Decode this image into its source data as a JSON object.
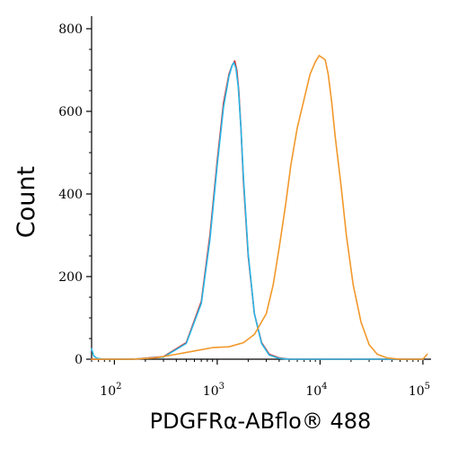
{
  "chart_data": {
    "type": "line",
    "xlabel": "PDGFRα-ABflo® 488",
    "ylabel": "Count",
    "x_scale": "log",
    "xlim": [
      60,
      120000
    ],
    "ylim": [
      0,
      800
    ],
    "x_ticks": [
      {
        "base": "10",
        "exp": "2",
        "value": 100
      },
      {
        "base": "10",
        "exp": "3",
        "value": 1000
      },
      {
        "base": "10",
        "exp": "4",
        "value": 10000
      },
      {
        "base": "10",
        "exp": "5",
        "value": 100000
      }
    ],
    "y_ticks": [
      "0",
      "200",
      "400",
      "600",
      "800"
    ],
    "grid": false,
    "legend": "none",
    "series": [
      {
        "color": "#d62a2a",
        "x": [
          60,
          150,
          300,
          500,
          700,
          850,
          1000,
          1150,
          1300,
          1400,
          1480,
          1550,
          1620,
          1700,
          1800,
          2000,
          2300,
          2700,
          3200,
          4000,
          5000,
          7000,
          10000,
          100000
        ],
        "y": [
          0,
          0,
          6,
          40,
          140,
          300,
          480,
          620,
          690,
          712,
          722,
          700,
          650,
          560,
          430,
          250,
          110,
          40,
          12,
          3,
          0,
          0,
          0,
          0
        ]
      },
      {
        "color": "#29b6e6",
        "x": [
          60,
          63,
          68,
          80,
          150,
          300,
          500,
          700,
          850,
          1000,
          1150,
          1300,
          1400,
          1450,
          1520,
          1600,
          1700,
          1800,
          2000,
          2300,
          2700,
          3200,
          4000,
          5000,
          7000,
          10000,
          100000
        ],
        "y": [
          25,
          8,
          2,
          0,
          0,
          5,
          38,
          135,
          290,
          470,
          610,
          685,
          712,
          718,
          705,
          660,
          560,
          440,
          255,
          110,
          38,
          10,
          2,
          0,
          0,
          0,
          0
        ]
      },
      {
        "color": "#f2982a",
        "x": [
          60,
          150,
          250,
          400,
          600,
          900,
          1300,
          1800,
          2300,
          3000,
          3500,
          4000,
          4600,
          5200,
          6000,
          7000,
          8000,
          9000,
          9800,
          10500,
          11200,
          12000,
          13000,
          14000,
          16000,
          18000,
          21000,
          25000,
          30000,
          36000,
          45000,
          60000,
          100000,
          110000
        ],
        "y": [
          0,
          0,
          3,
          12,
          20,
          28,
          30,
          40,
          60,
          110,
          180,
          270,
          370,
          470,
          560,
          630,
          690,
          720,
          735,
          730,
          725,
          690,
          620,
          540,
          420,
          300,
          180,
          90,
          35,
          12,
          3,
          0,
          0,
          12
        ]
      }
    ]
  }
}
